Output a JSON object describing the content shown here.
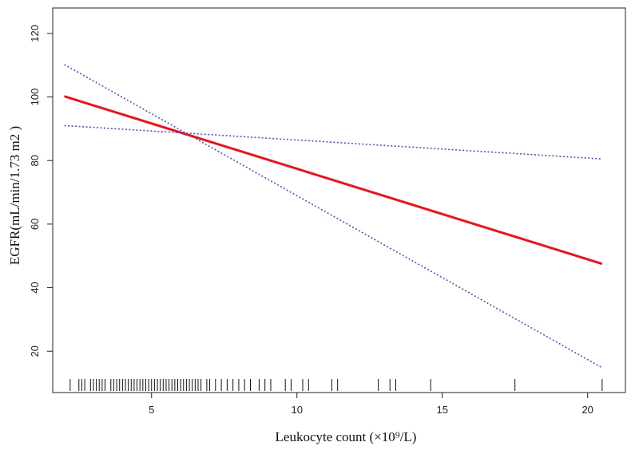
{
  "chart_data": {
    "type": "line",
    "title": "",
    "xlabel": "Leukocyte count (×10⁹/L)",
    "ylabel": "EGFR(mL/min/1.73 m2 )",
    "xlim": [
      1.6,
      21.3
    ],
    "ylim": [
      7,
      128
    ],
    "xticks": [
      5,
      10,
      15,
      20
    ],
    "yticks": [
      20,
      40,
      60,
      80,
      100,
      120
    ],
    "grid": false,
    "series": [
      {
        "style": "solid",
        "color": "#e8141c",
        "x": [
          2.0,
          20.5
        ],
        "y": [
          100.2,
          47.5
        ]
      },
      {
        "style": "dotted",
        "color": "#5a4fb0",
        "x": [
          2.0,
          20.5
        ],
        "y": [
          110.2,
          14.8
        ]
      },
      {
        "style": "dotted",
        "color": "#5a4fb0",
        "x": [
          2.0,
          20.5
        ],
        "y": [
          91.0,
          80.5
        ]
      }
    ],
    "rug": [
      2.2,
      2.5,
      2.6,
      2.7,
      2.9,
      3.0,
      3.1,
      3.2,
      3.3,
      3.4,
      3.6,
      3.7,
      3.8,
      3.9,
      4.0,
      4.1,
      4.2,
      4.3,
      4.4,
      4.5,
      4.6,
      4.7,
      4.8,
      4.9,
      5.0,
      5.1,
      5.2,
      5.3,
      5.4,
      5.5,
      5.6,
      5.7,
      5.8,
      5.9,
      6.0,
      6.1,
      6.2,
      6.3,
      6.4,
      6.5,
      6.6,
      6.7,
      6.9,
      7.0,
      7.2,
      7.4,
      7.6,
      7.8,
      8.0,
      8.2,
      8.4,
      8.7,
      8.9,
      9.1,
      9.6,
      9.8,
      10.2,
      10.4,
      11.2,
      11.4,
      12.8,
      13.2,
      13.4,
      14.6,
      17.5,
      20.5
    ],
    "colors": {
      "main_line": "#e8141c",
      "ci_lines": "#5a4fb0",
      "axis": "#222222"
    }
  }
}
